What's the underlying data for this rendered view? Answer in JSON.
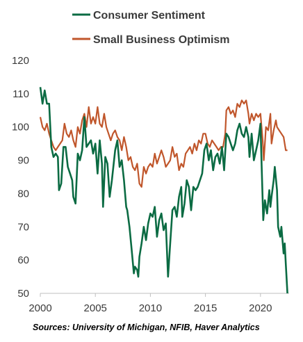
{
  "chart_data": {
    "type": "line",
    "xlim": [
      2000,
      2022.6
    ],
    "ylim": [
      50,
      120
    ],
    "x_ticks": [
      "2000",
      "2005",
      "2010",
      "2015",
      "2020"
    ],
    "y_ticks": [
      "120",
      "110",
      "100",
      "90",
      "80",
      "70",
      "60",
      "50"
    ],
    "grid": false,
    "legend_position": "top",
    "source": "Sources: University of Michigan, NFIB, Haver Analytics",
    "series": [
      {
        "name": "Consumer Sentiment",
        "color": "#0b6b43",
        "points": [
          [
            2000.0,
            112
          ],
          [
            2000.2,
            107
          ],
          [
            2000.4,
            111
          ],
          [
            2000.6,
            107
          ],
          [
            2000.8,
            107
          ],
          [
            2001.0,
            94
          ],
          [
            2001.2,
            91
          ],
          [
            2001.4,
            92
          ],
          [
            2001.6,
            91
          ],
          [
            2001.7,
            81
          ],
          [
            2001.9,
            83
          ],
          [
            2002.1,
            94
          ],
          [
            2002.3,
            94
          ],
          [
            2002.5,
            88
          ],
          [
            2002.7,
            86
          ],
          [
            2002.9,
            84
          ],
          [
            2003.0,
            79
          ],
          [
            2003.2,
            77
          ],
          [
            2003.4,
            92
          ],
          [
            2003.6,
            90
          ],
          [
            2003.8,
            93
          ],
          [
            2004.0,
            103
          ],
          [
            2004.2,
            94
          ],
          [
            2004.4,
            95
          ],
          [
            2004.6,
            96
          ],
          [
            2004.8,
            92
          ],
          [
            2005.0,
            95
          ],
          [
            2005.2,
            86
          ],
          [
            2005.4,
            96
          ],
          [
            2005.6,
            89
          ],
          [
            2005.7,
            76
          ],
          [
            2005.9,
            91
          ],
          [
            2006.1,
            89
          ],
          [
            2006.3,
            79
          ],
          [
            2006.5,
            84
          ],
          [
            2006.8,
            93
          ],
          [
            2007.0,
            96
          ],
          [
            2007.2,
            88
          ],
          [
            2007.4,
            90
          ],
          [
            2007.6,
            84
          ],
          [
            2007.8,
            76
          ],
          [
            2007.9,
            75
          ],
          [
            2008.1,
            70
          ],
          [
            2008.3,
            63
          ],
          [
            2008.5,
            56
          ],
          [
            2008.6,
            58
          ],
          [
            2008.8,
            57
          ],
          [
            2008.9,
            55
          ],
          [
            2009.0,
            61
          ],
          [
            2009.2,
            65
          ],
          [
            2009.4,
            70
          ],
          [
            2009.6,
            66
          ],
          [
            2009.8,
            71
          ],
          [
            2010.0,
            74
          ],
          [
            2010.2,
            73
          ],
          [
            2010.4,
            76
          ],
          [
            2010.6,
            67
          ],
          [
            2010.8,
            72
          ],
          [
            2011.0,
            74
          ],
          [
            2011.2,
            69
          ],
          [
            2011.4,
            71
          ],
          [
            2011.6,
            55
          ],
          [
            2011.8,
            65
          ],
          [
            2012.0,
            75
          ],
          [
            2012.2,
            76
          ],
          [
            2012.4,
            73
          ],
          [
            2012.6,
            79
          ],
          [
            2012.8,
            82
          ],
          [
            2012.9,
            73
          ],
          [
            2013.1,
            77
          ],
          [
            2013.3,
            84
          ],
          [
            2013.5,
            82
          ],
          [
            2013.7,
            75
          ],
          [
            2013.9,
            82
          ],
          [
            2014.1,
            81
          ],
          [
            2014.3,
            82
          ],
          [
            2014.5,
            84
          ],
          [
            2014.7,
            86
          ],
          [
            2014.9,
            93
          ],
          [
            2015.1,
            95
          ],
          [
            2015.3,
            90
          ],
          [
            2015.5,
            93
          ],
          [
            2015.7,
            87
          ],
          [
            2015.9,
            91
          ],
          [
            2016.1,
            92
          ],
          [
            2016.3,
            89
          ],
          [
            2016.5,
            94
          ],
          [
            2016.7,
            87
          ],
          [
            2016.9,
            98
          ],
          [
            2017.1,
            97
          ],
          [
            2017.3,
            95
          ],
          [
            2017.5,
            93
          ],
          [
            2017.7,
            95
          ],
          [
            2017.9,
            99
          ],
          [
            2018.1,
            101
          ],
          [
            2018.3,
            98
          ],
          [
            2018.5,
            97
          ],
          [
            2018.7,
            100
          ],
          [
            2018.9,
            97
          ],
          [
            2019.0,
            91
          ],
          [
            2019.2,
            98
          ],
          [
            2019.4,
            90
          ],
          [
            2019.6,
            93
          ],
          [
            2019.8,
            96
          ],
          [
            2020.0,
            101
          ],
          [
            2020.1,
            89
          ],
          [
            2020.25,
            72
          ],
          [
            2020.4,
            78
          ],
          [
            2020.6,
            74
          ],
          [
            2020.8,
            81
          ],
          [
            2020.9,
            76
          ],
          [
            2021.0,
            79
          ],
          [
            2021.2,
            84
          ],
          [
            2021.3,
            88
          ],
          [
            2021.5,
            81
          ],
          [
            2021.6,
            70
          ],
          [
            2021.8,
            67
          ],
          [
            2021.9,
            70
          ],
          [
            2022.1,
            62
          ],
          [
            2022.2,
            65
          ],
          [
            2022.3,
            59
          ],
          [
            2022.45,
            50
          ]
        ]
      },
      {
        "name": "Small Business Optimism",
        "color": "#c0562b",
        "points": [
          [
            2000.0,
            103
          ],
          [
            2000.2,
            100
          ],
          [
            2000.4,
            99
          ],
          [
            2000.6,
            101
          ],
          [
            2000.8,
            98
          ],
          [
            2001.0,
            96
          ],
          [
            2001.2,
            94
          ],
          [
            2001.4,
            93
          ],
          [
            2001.6,
            94
          ],
          [
            2001.8,
            95
          ],
          [
            2002.0,
            96
          ],
          [
            2002.2,
            101
          ],
          [
            2002.4,
            98
          ],
          [
            2002.6,
            97
          ],
          [
            2002.8,
            99
          ],
          [
            2003.0,
            96
          ],
          [
            2003.2,
            94
          ],
          [
            2003.4,
            100
          ],
          [
            2003.6,
            98
          ],
          [
            2003.8,
            102
          ],
          [
            2004.0,
            104
          ],
          [
            2004.2,
            100
          ],
          [
            2004.4,
            106
          ],
          [
            2004.6,
            101
          ],
          [
            2004.8,
            103
          ],
          [
            2005.0,
            101
          ],
          [
            2005.2,
            106
          ],
          [
            2005.4,
            101
          ],
          [
            2005.6,
            100
          ],
          [
            2005.8,
            104
          ],
          [
            2006.0,
            100
          ],
          [
            2006.2,
            98
          ],
          [
            2006.4,
            96
          ],
          [
            2006.6,
            98
          ],
          [
            2006.8,
            99
          ],
          [
            2007.0,
            97
          ],
          [
            2007.2,
            96
          ],
          [
            2007.4,
            93
          ],
          [
            2007.6,
            97
          ],
          [
            2007.8,
            94
          ],
          [
            2008.0,
            90
          ],
          [
            2008.2,
            91
          ],
          [
            2008.4,
            88
          ],
          [
            2008.6,
            87
          ],
          [
            2008.8,
            89
          ],
          [
            2009.0,
            83
          ],
          [
            2009.2,
            82
          ],
          [
            2009.4,
            88
          ],
          [
            2009.6,
            86
          ],
          [
            2009.8,
            88
          ],
          [
            2010.0,
            89
          ],
          [
            2010.2,
            88
          ],
          [
            2010.4,
            92
          ],
          [
            2010.6,
            89
          ],
          [
            2010.8,
            91
          ],
          [
            2011.0,
            93
          ],
          [
            2011.2,
            91
          ],
          [
            2011.4,
            88
          ],
          [
            2011.6,
            89
          ],
          [
            2011.8,
            90
          ],
          [
            2012.0,
            94
          ],
          [
            2012.2,
            91
          ],
          [
            2012.4,
            92
          ],
          [
            2012.6,
            87
          ],
          [
            2012.8,
            89
          ],
          [
            2013.0,
            88
          ],
          [
            2013.2,
            92
          ],
          [
            2013.4,
            93
          ],
          [
            2013.6,
            94
          ],
          [
            2013.8,
            92
          ],
          [
            2014.0,
            95
          ],
          [
            2014.2,
            93
          ],
          [
            2014.4,
            96
          ],
          [
            2014.6,
            95
          ],
          [
            2014.8,
            98
          ],
          [
            2015.0,
            98
          ],
          [
            2015.2,
            95
          ],
          [
            2015.4,
            94
          ],
          [
            2015.6,
            96
          ],
          [
            2015.8,
            95
          ],
          [
            2016.0,
            94
          ],
          [
            2016.2,
            93
          ],
          [
            2016.4,
            94
          ],
          [
            2016.6,
            94
          ],
          [
            2016.8,
            98
          ],
          [
            2016.9,
            105
          ],
          [
            2017.1,
            106
          ],
          [
            2017.3,
            104
          ],
          [
            2017.5,
            105
          ],
          [
            2017.7,
            103
          ],
          [
            2017.9,
            107
          ],
          [
            2018.1,
            106
          ],
          [
            2018.3,
            108
          ],
          [
            2018.5,
            107
          ],
          [
            2018.7,
            108
          ],
          [
            2018.9,
            104
          ],
          [
            2019.0,
            101
          ],
          [
            2019.2,
            104
          ],
          [
            2019.4,
            102
          ],
          [
            2019.6,
            104
          ],
          [
            2019.8,
            103
          ],
          [
            2020.0,
            104
          ],
          [
            2020.2,
            96
          ],
          [
            2020.3,
            90
          ],
          [
            2020.5,
            100
          ],
          [
            2020.7,
            99
          ],
          [
            2020.9,
            104
          ],
          [
            2021.0,
            95
          ],
          [
            2021.2,
            99
          ],
          [
            2021.4,
            102
          ],
          [
            2021.5,
            100
          ],
          [
            2021.7,
            99
          ],
          [
            2021.9,
            98
          ],
          [
            2022.1,
            97
          ],
          [
            2022.3,
            93
          ],
          [
            2022.45,
            93
          ]
        ]
      }
    ]
  }
}
